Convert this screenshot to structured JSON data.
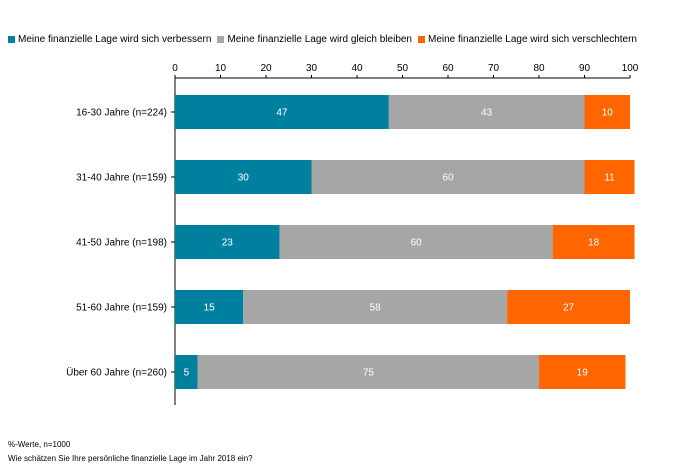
{
  "chart_data": {
    "type": "bar",
    "orientation": "horizontal",
    "stacked": true,
    "categories": [
      "16-30 Jahre (n=224)",
      "31-40 Jahre (n=159)",
      "41-50 Jahre (n=198)",
      "51-60 Jahre (n=159)",
      "Über 60 Jahre (n=260)"
    ],
    "series": [
      {
        "name": "Meine finanzielle Lage wird sich verbessern",
        "color": "#00809f",
        "values": [
          47,
          30,
          23,
          15,
          5
        ]
      },
      {
        "name": "Meine finanzielle Lage wird gleich bleiben",
        "color": "#a6a6a6",
        "values": [
          43,
          60,
          60,
          58,
          75
        ]
      },
      {
        "name": "Meine finanzielle Lage wird sich verschlechtern",
        "color": "#ff6600",
        "values": [
          10,
          11,
          18,
          27,
          19
        ]
      }
    ],
    "xlim": [
      0,
      100
    ],
    "xticks": [
      0,
      10,
      20,
      30,
      40,
      50,
      60,
      70,
      80,
      90,
      100
    ],
    "legend_position": "top",
    "grid": false
  },
  "footnote": {
    "line1": "%-Werte, n=1000",
    "line2": "Wie schätzen Sie Ihre persönliche finanzielle Lage im Jahr 2018 ein?"
  }
}
